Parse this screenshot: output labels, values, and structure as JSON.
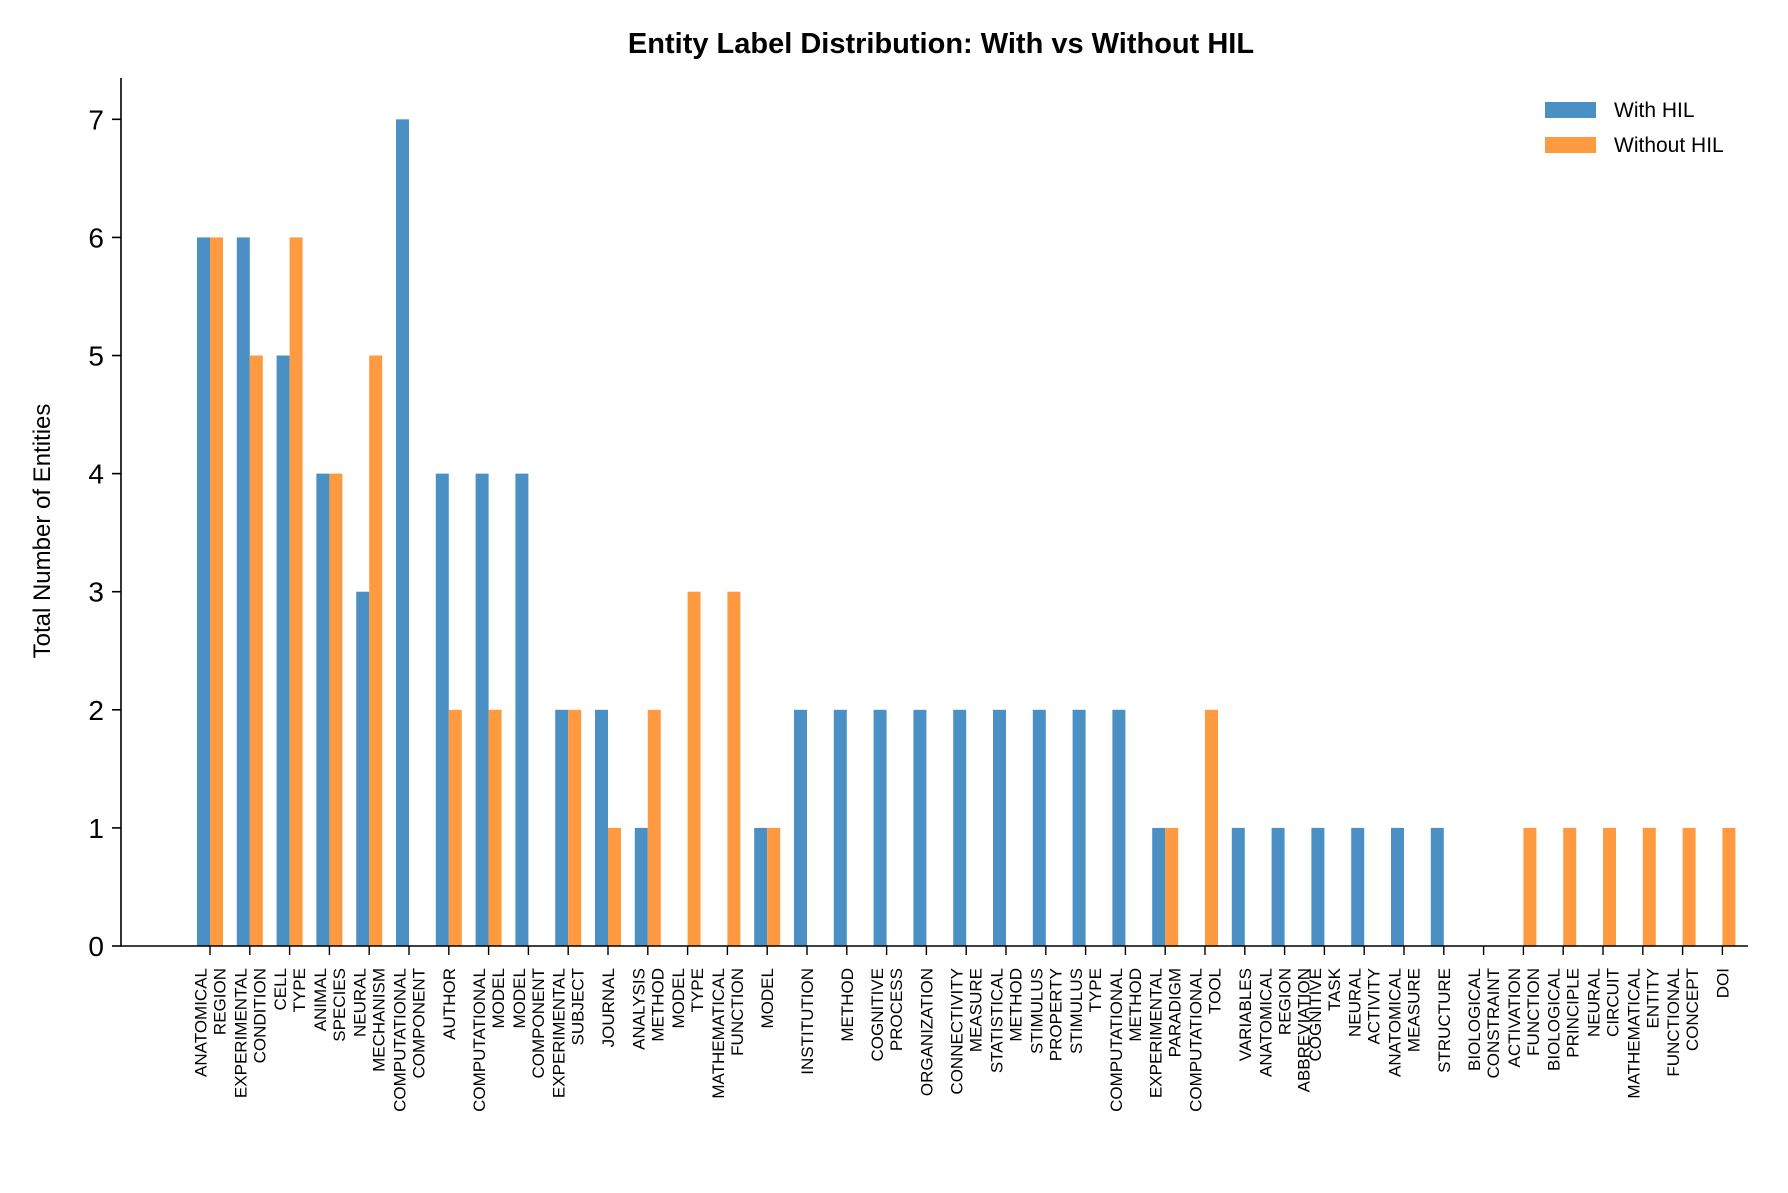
{
  "chart_data": {
    "type": "bar",
    "title": "Entity Label Distribution: With vs Without HIL",
    "xlabel": "",
    "ylabel": "Total Number of Entities",
    "ylim": [
      0,
      7.35
    ],
    "yticks": [
      0,
      1,
      2,
      3,
      4,
      5,
      6,
      7
    ],
    "grid": false,
    "legend_position": "top-right",
    "colors": {
      "With HIL": "#4a90c4",
      "Without HIL": "#ff9a40"
    },
    "categories": [
      [
        "ANATOMICAL",
        "REGION"
      ],
      [
        "EXPERIMENTAL",
        "CONDITION"
      ],
      [
        "CELL",
        "TYPE"
      ],
      [
        "ANIMAL",
        "SPECIES"
      ],
      [
        "NEURAL",
        "MECHANISM"
      ],
      [
        "COMPUTATIONAL",
        "COMPONENT"
      ],
      [
        "AUTHOR"
      ],
      [
        "COMPUTATIONAL",
        "MODEL"
      ],
      [
        "MODEL",
        "COMPONENT"
      ],
      [
        "EXPERIMENTAL",
        "SUBJECT"
      ],
      [
        "JOURNAL"
      ],
      [
        "ANALYSIS",
        "METHOD"
      ],
      [
        "MODEL",
        "TYPE"
      ],
      [
        "MATHEMATICAL",
        "FUNCTION"
      ],
      [
        "MODEL"
      ],
      [
        "INSTITUTION"
      ],
      [
        "METHOD"
      ],
      [
        "COGNITIVE",
        "PROCESS"
      ],
      [
        "ORGANIZATION"
      ],
      [
        "CONNECTIVITY",
        "MEASURE"
      ],
      [
        "STATISTICAL",
        "METHOD"
      ],
      [
        "STIMULUS",
        "PROPERTY"
      ],
      [
        "STIMULUS",
        "TYPE"
      ],
      [
        "COMPUTATIONAL",
        "METHOD"
      ],
      [
        "EXPERIMENTAL",
        "PARADIGM"
      ],
      [
        "COMPUTATIONAL",
        "TOOL"
      ],
      [
        "VARIABLES"
      ],
      [
        "ANATOMICAL",
        "REGION",
        "ABBREVIATION"
      ],
      [
        "COGNITIVE",
        "TASK"
      ],
      [
        "NEURAL",
        "ACTIVITY"
      ],
      [
        "ANATOMICAL",
        "MEASURE"
      ],
      [
        "STRUCTURE"
      ],
      [
        "BIOLOGICAL",
        "CONSTRAINT"
      ],
      [
        "ACTIVATION",
        "FUNCTION"
      ],
      [
        "BIOLOGICAL",
        "PRINCIPLE"
      ],
      [
        "NEURAL",
        "CIRCUIT"
      ],
      [
        "MATHEMATICAL",
        "ENTITY"
      ],
      [
        "FUNCTIONAL",
        "CONCEPT"
      ],
      [
        "DOI"
      ]
    ],
    "series": [
      {
        "name": "With HIL",
        "values": [
          6,
          6,
          5,
          4,
          3,
          7,
          4,
          4,
          4,
          2,
          2,
          1,
          0,
          0,
          1,
          2,
          2,
          2,
          2,
          2,
          2,
          2,
          2,
          2,
          1,
          0,
          1,
          1,
          1,
          1,
          1,
          1,
          0,
          0,
          0,
          0,
          0,
          0,
          0
        ]
      },
      {
        "name": "Without HIL",
        "values": [
          6,
          5,
          6,
          4,
          5,
          0,
          2,
          2,
          0,
          2,
          1,
          2,
          3,
          3,
          1,
          0,
          0,
          0,
          0,
          0,
          0,
          0,
          0,
          0,
          1,
          2,
          0,
          0,
          0,
          0,
          0,
          0,
          0,
          1,
          1,
          1,
          1,
          1,
          1
        ]
      }
    ]
  }
}
